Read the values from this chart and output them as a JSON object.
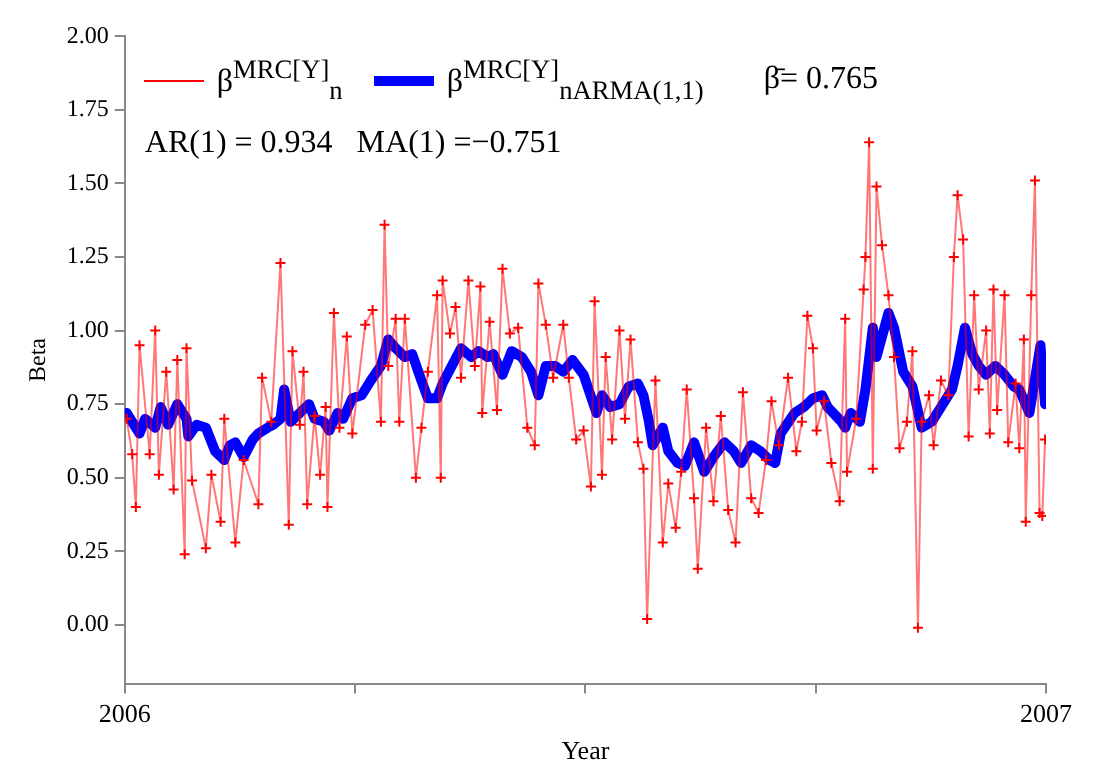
{
  "chart_data": {
    "type": "line",
    "xlabel": "Year",
    "ylabel": "Beta",
    "legend": "top left",
    "grid": false,
    "xlim": [
      2006,
      2007
    ],
    "xticks": [
      2006,
      {
        "value": 2006.25,
        "label": null
      },
      {
        "value": 2006.5,
        "label": null
      },
      {
        "value": 2006.75,
        "label": null
      },
      2007
    ],
    "ylim": [
      -0.2,
      2.0
    ],
    "yticks": [
      {
        "value": 0,
        "label": "0.00"
      },
      {
        "value": 0.25,
        "label": "0.25"
      },
      {
        "value": 0.5,
        "label": "0.50"
      },
      {
        "value": 0.75,
        "label": "0.75"
      },
      {
        "value": 1,
        "label": "1.00"
      },
      {
        "value": 1.25,
        "label": "1.25"
      },
      {
        "value": 1.5,
        "label": "1.50"
      },
      {
        "value": 1.75,
        "label": "1.75"
      },
      {
        "value": 2,
        "label": "2.00"
      }
    ],
    "annotations": [
      "β̄= 0.765",
      "AR(1) = 0.934   MA(1) =−0.751"
    ],
    "series": [
      {
        "name": "β$^{MRC[Y]}$$_{n}$",
        "color": "#ff0000",
        "marker": "cross",
        "line_style": "solid",
        "x": [
          2006.002,
          2006.008,
          2006.012,
          2006.016,
          2006.027,
          2006.033,
          2006.037,
          2006.045,
          2006.053,
          2006.057,
          2006.065,
          2006.067,
          2006.073,
          2006.088,
          2006.094,
          2006.104,
          2006.108,
          2006.12,
          2006.129,
          2006.145,
          2006.149,
          2006.159,
          2006.169,
          2006.178,
          2006.182,
          2006.19,
          2006.194,
          2006.198,
          2006.206,
          2006.212,
          2006.218,
          2006.22,
          2006.227,
          2006.233,
          2006.241,
          2006.247,
          2006.261,
          2006.269,
          2006.278,
          2006.282,
          2006.286,
          2006.294,
          2006.298,
          2006.304,
          2006.316,
          2006.322,
          2006.329,
          2006.339,
          2006.343,
          2006.345,
          2006.353,
          2006.359,
          2006.365,
          2006.373,
          2006.38,
          2006.386,
          2006.388,
          2006.396,
          2006.404,
          2006.41,
          2006.418,
          2006.427,
          2006.437,
          2006.445,
          2006.449,
          2006.457,
          2006.465,
          2006.476,
          2006.482,
          2006.49,
          2006.498,
          2006.506,
          2006.51,
          2006.518,
          2006.522,
          2006.529,
          2006.537,
          2006.543,
          2006.549,
          2006.557,
          2006.563,
          2006.567,
          2006.576,
          2006.584,
          2006.59,
          2006.598,
          2006.604,
          2006.61,
          2006.618,
          2006.622,
          2006.631,
          2006.639,
          2006.647,
          2006.655,
          2006.663,
          2006.671,
          2006.68,
          2006.688,
          2006.696,
          2006.702,
          2006.71,
          2006.72,
          2006.729,
          2006.735,
          2006.741,
          2006.747,
          2006.751,
          2006.759,
          2006.767,
          2006.776,
          2006.782,
          2006.784,
          2006.794,
          2006.802,
          2006.804,
          2006.808,
          2006.812,
          2006.816,
          2006.822,
          2006.829,
          2006.835,
          2006.841,
          2006.849,
          2006.855,
          2006.861,
          2006.865,
          2006.873,
          2006.878,
          2006.886,
          2006.894,
          2006.9,
          2006.904,
          2006.91,
          2006.916,
          2006.922,
          2006.927,
          2006.935,
          2006.939,
          2006.943,
          2006.947,
          2006.955,
          2006.959,
          2006.967,
          2006.971,
          2006.976,
          2006.978,
          2006.984,
          2006.988,
          2006.993,
          2006.996,
          2006.999
        ],
        "values": [
          0.7,
          0.58,
          0.4,
          0.95,
          0.58,
          1.0,
          0.51,
          0.86,
          0.46,
          0.9,
          0.24,
          0.94,
          0.49,
          0.26,
          0.51,
          0.35,
          0.7,
          0.28,
          0.56,
          0.41,
          0.84,
          0.69,
          1.23,
          0.34,
          0.93,
          0.68,
          0.86,
          0.41,
          0.71,
          0.51,
          0.74,
          0.4,
          1.06,
          0.67,
          0.98,
          0.65,
          1.02,
          1.07,
          0.69,
          1.36,
          0.88,
          1.04,
          0.69,
          1.04,
          0.5,
          0.67,
          0.86,
          1.12,
          0.5,
          1.17,
          0.99,
          1.08,
          0.84,
          1.17,
          0.88,
          1.15,
          0.72,
          1.03,
          0.73,
          1.21,
          0.99,
          1.01,
          0.67,
          0.61,
          1.16,
          1.02,
          0.84,
          1.02,
          0.84,
          0.63,
          0.66,
          0.47,
          1.1,
          0.51,
          0.91,
          0.63,
          1.0,
          0.7,
          0.97,
          0.62,
          0.53,
          0.02,
          0.83,
          0.28,
          0.48,
          0.33,
          0.52,
          0.8,
          0.43,
          0.19,
          0.67,
          0.42,
          0.71,
          0.39,
          0.28,
          0.79,
          0.43,
          0.38,
          0.56,
          0.76,
          0.61,
          0.84,
          0.59,
          0.69,
          1.05,
          0.94,
          0.66,
          0.76,
          0.55,
          0.42,
          1.04,
          0.52,
          0.7,
          1.14,
          1.25,
          1.64,
          0.53,
          1.49,
          1.29,
          1.12,
          0.91,
          0.6,
          0.69,
          0.93,
          -0.01,
          0.69,
          0.78,
          0.61,
          0.83,
          0.78,
          1.25,
          1.46,
          1.31,
          0.64,
          1.12,
          0.8,
          1.0,
          0.65,
          1.14,
          0.73,
          1.12,
          0.62,
          0.82,
          0.6,
          0.97,
          0.35,
          1.12,
          1.51,
          0.38,
          0.37,
          0.63
        ]
      },
      {
        "name": "β$^{MRC[Y]}$$_{n}$$_{ARMA(1,1)}$",
        "color": "#0000ff",
        "marker": "none",
        "line_style": "solid",
        "x": [
          2006.002,
          2006.016,
          2006.022,
          2006.033,
          2006.039,
          2006.047,
          2006.057,
          2006.067,
          2006.069,
          2006.078,
          2006.088,
          2006.098,
          2006.108,
          2006.114,
          2006.12,
          2006.129,
          2006.139,
          2006.145,
          2006.155,
          2006.161,
          2006.169,
          2006.173,
          2006.18,
          2006.19,
          2006.2,
          2006.206,
          2006.216,
          2006.222,
          2006.231,
          2006.237,
          2006.247,
          2006.257,
          2006.267,
          2006.278,
          2006.286,
          2006.294,
          2006.304,
          2006.312,
          2006.322,
          2006.329,
          2006.339,
          2006.345,
          2006.355,
          2006.365,
          2006.376,
          2006.384,
          2006.394,
          2006.4,
          2006.41,
          2006.42,
          2006.431,
          2006.441,
          2006.449,
          2006.457,
          2006.467,
          2006.476,
          2006.486,
          2006.498,
          2006.512,
          2006.518,
          2006.527,
          2006.537,
          2006.547,
          2006.557,
          2006.563,
          2006.569,
          2006.573,
          2006.584,
          2006.59,
          2006.6,
          2006.608,
          2006.618,
          2006.629,
          2006.639,
          2006.651,
          2006.661,
          2006.669,
          2006.68,
          2006.69,
          2006.7,
          2006.706,
          2006.712,
          2006.727,
          2006.737,
          2006.747,
          2006.757,
          2006.763,
          2006.778,
          2006.782,
          2006.788,
          2006.798,
          2006.804,
          2006.812,
          2006.816,
          2006.829,
          2006.835,
          2006.845,
          2006.855,
          2006.865,
          2006.876,
          2006.886,
          2006.898,
          2006.904,
          2006.912,
          2006.92,
          2006.927,
          2006.935,
          2006.945,
          2006.955,
          2006.965,
          2006.971,
          2006.982,
          2006.994,
          2006.999
        ],
        "values": [
          0.72,
          0.65,
          0.7,
          0.67,
          0.74,
          0.68,
          0.75,
          0.7,
          0.64,
          0.68,
          0.67,
          0.59,
          0.56,
          0.61,
          0.62,
          0.57,
          0.63,
          0.65,
          0.67,
          0.68,
          0.7,
          0.8,
          0.69,
          0.72,
          0.75,
          0.7,
          0.69,
          0.66,
          0.72,
          0.7,
          0.77,
          0.78,
          0.83,
          0.88,
          0.97,
          0.94,
          0.91,
          0.92,
          0.83,
          0.77,
          0.77,
          0.82,
          0.88,
          0.94,
          0.91,
          0.93,
          0.91,
          0.92,
          0.85,
          0.93,
          0.91,
          0.86,
          0.78,
          0.88,
          0.88,
          0.86,
          0.9,
          0.85,
          0.72,
          0.78,
          0.74,
          0.75,
          0.81,
          0.82,
          0.78,
          0.69,
          0.61,
          0.67,
          0.59,
          0.55,
          0.54,
          0.62,
          0.52,
          0.57,
          0.62,
          0.59,
          0.55,
          0.61,
          0.59,
          0.56,
          0.55,
          0.65,
          0.72,
          0.74,
          0.77,
          0.78,
          0.74,
          0.69,
          0.67,
          0.72,
          0.69,
          0.8,
          1.01,
          0.91,
          1.06,
          1.01,
          0.86,
          0.81,
          0.67,
          0.69,
          0.74,
          0.8,
          0.88,
          1.01,
          0.92,
          0.88,
          0.85,
          0.88,
          0.85,
          0.81,
          0.8,
          0.72,
          0.95,
          0.75
        ]
      }
    ]
  }
}
